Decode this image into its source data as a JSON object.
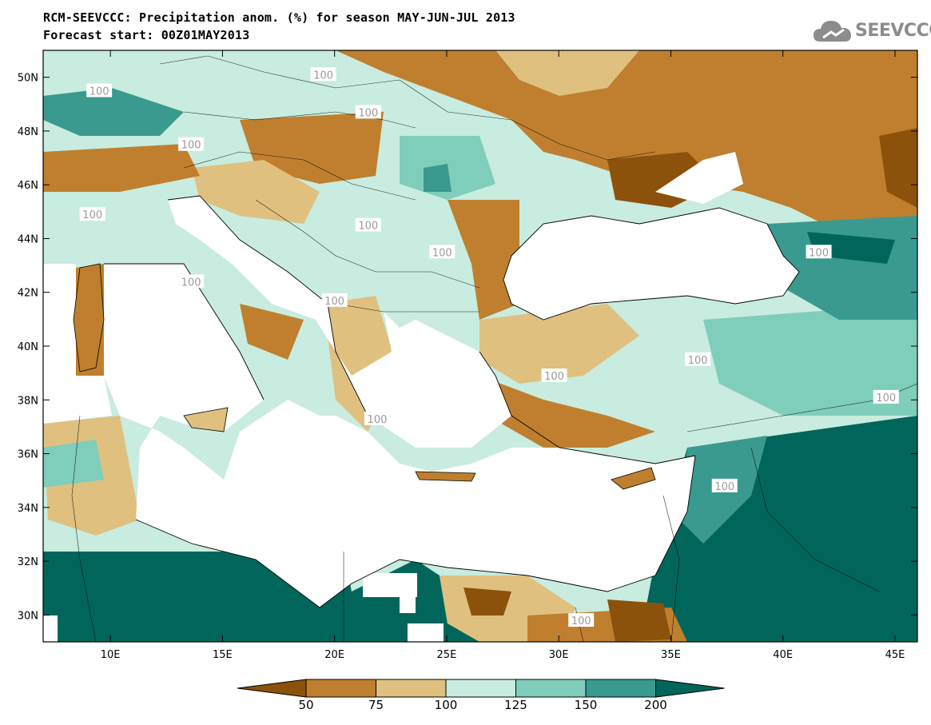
{
  "title_line1": "RCM-SEEVCCC: Precipitation anom. (%) for season MAY-JUN-JUL 2013",
  "title_line2": "Forecast start: 00Z01MAY2013",
  "logo_text": "SEEVCCC",
  "logo_icon": "cloud-icon",
  "map": {
    "lon_range": [
      7,
      46
    ],
    "lat_range": [
      29,
      51
    ],
    "lat_ticks": [
      {
        "value": 50,
        "label": "50N"
      },
      {
        "value": 48,
        "label": "48N"
      },
      {
        "value": 46,
        "label": "46N"
      },
      {
        "value": 44,
        "label": "44N"
      },
      {
        "value": 42,
        "label": "42N"
      },
      {
        "value": 40,
        "label": "40N"
      },
      {
        "value": 38,
        "label": "38N"
      },
      {
        "value": 36,
        "label": "36N"
      },
      {
        "value": 34,
        "label": "34N"
      },
      {
        "value": 32,
        "label": "32N"
      },
      {
        "value": 30,
        "label": "30N"
      }
    ],
    "lon_ticks": [
      {
        "value": 10,
        "label": "10E"
      },
      {
        "value": 15,
        "label": "15E"
      },
      {
        "value": 20,
        "label": "20E"
      },
      {
        "value": 25,
        "label": "25E"
      },
      {
        "value": 30,
        "label": "30E"
      },
      {
        "value": 35,
        "label": "35E"
      },
      {
        "value": 40,
        "label": "40E"
      },
      {
        "value": 45,
        "label": "45E"
      }
    ],
    "contour_labels": [
      {
        "text": "100",
        "lon": 9.5,
        "lat": 49.5
      },
      {
        "text": "100",
        "lon": 19.5,
        "lat": 50.1
      },
      {
        "text": "100",
        "lon": 21.5,
        "lat": 48.7
      },
      {
        "text": "100",
        "lon": 13.6,
        "lat": 47.5
      },
      {
        "text": "100",
        "lon": 9.2,
        "lat": 44.9
      },
      {
        "text": "100",
        "lon": 21.5,
        "lat": 44.5
      },
      {
        "text": "100",
        "lon": 24.8,
        "lat": 43.5
      },
      {
        "text": "100",
        "lon": 13.6,
        "lat": 42.4
      },
      {
        "text": "100",
        "lon": 20.0,
        "lat": 41.7
      },
      {
        "text": "100",
        "lon": 29.8,
        "lat": 38.9
      },
      {
        "text": "100",
        "lon": 36.2,
        "lat": 39.5
      },
      {
        "text": "100",
        "lon": 41.6,
        "lat": 43.5
      },
      {
        "text": "100",
        "lon": 44.6,
        "lat": 38.1
      },
      {
        "text": "100",
        "lon": 21.9,
        "lat": 37.3
      },
      {
        "text": "100",
        "lon": 37.4,
        "lat": 34.8
      },
      {
        "text": "100",
        "lon": 31.0,
        "lat": 29.8
      }
    ]
  },
  "legend": {
    "colors": [
      "#8c520c",
      "#bf7f2e",
      "#dfc07f",
      "#c8ecdf",
      "#7fcdbb",
      "#3a9a8f",
      "#00665c"
    ],
    "labels": [
      "50",
      "75",
      "100",
      "125",
      "150",
      "200"
    ]
  }
}
